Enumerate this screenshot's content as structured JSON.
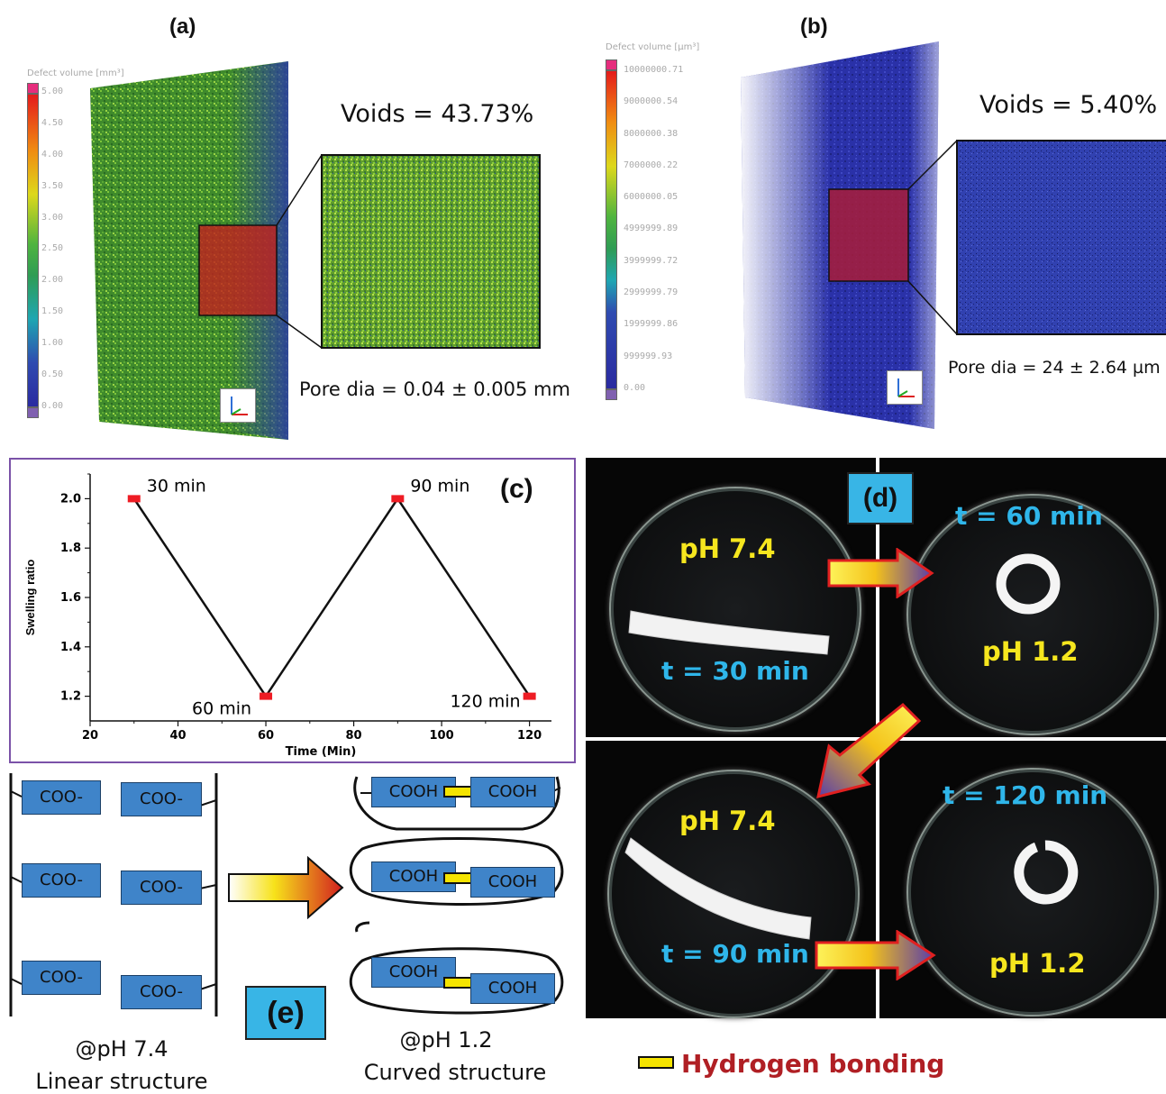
{
  "panel_a": {
    "label": "(a)",
    "colorbar_title": "Defect volume [mm³]",
    "colorbar_ticks": [
      "5.00",
      "4.50",
      "4.00",
      "3.50",
      "3.00",
      "2.50",
      "2.00",
      "1.50",
      "1.00",
      "0.50",
      "0.00"
    ],
    "voids": "Voids = 43.73%",
    "pore": "Pore dia = 0.04 ± 0.005 mm",
    "axes_icon": "xyz-axes-icon"
  },
  "panel_b": {
    "label": "(b)",
    "colorbar_title": "Defect volume [µm³]",
    "colorbar_ticks": [
      "10000000.71",
      "9000000.54",
      "8000000.38",
      "7000000.22",
      "6000000.05",
      "4999999.89",
      "3999999.72",
      "2999999.79",
      "1999999.86",
      "999999.93",
      "0.00"
    ],
    "voids": "Voids = 5.40%",
    "pore": "Pore dia = 24 ± 2.64 µm",
    "axes_icon": "xyz-axes-icon"
  },
  "panel_c": {
    "label": "(c)",
    "x_ticks": [
      "20",
      "40",
      "60",
      "80",
      "100",
      "120"
    ],
    "y_ticks": [
      "1.2",
      "1.4",
      "1.6",
      "1.8",
      "2.0"
    ],
    "point_labels": [
      "30 min",
      "60 min",
      "90 min",
      "120 min"
    ]
  },
  "chart_data": {
    "type": "line",
    "x": [
      30,
      60,
      90,
      120
    ],
    "values": [
      2.0,
      1.2,
      2.0,
      1.2
    ],
    "xlabel": "Time (Min)",
    "ylabel": "Swelling ratio",
    "xlim": [
      20,
      125
    ],
    "ylim": [
      1.1,
      2.1
    ],
    "colors": {
      "line": "#111111",
      "marker": "#ee1c24"
    }
  },
  "panel_d": {
    "label": "(d)",
    "q1": {
      "ph": "pH  7.4",
      "t": "t = 30 min"
    },
    "q2": {
      "ph": "pH  1.2",
      "t": "t = 60 min"
    },
    "q3": {
      "ph": "pH  7.4",
      "t": "t = 90 min"
    },
    "q4": {
      "ph": "pH  1.2",
      "t": "t = 120 min"
    }
  },
  "panel_e": {
    "label": "(e)",
    "left_groups": [
      "COO-",
      "COO-",
      "COO-",
      "COO-",
      "COO-",
      "COO-"
    ],
    "right_groups": [
      "COOH",
      "COOH",
      "COOH",
      "COOH",
      "COOH",
      "COOH"
    ],
    "left_caption_1": "@pH  7.4",
    "left_caption_2": "Linear structure",
    "right_caption_1": "@pH  1.2",
    "right_caption_2": "Curved structure"
  },
  "legend": {
    "label": "Hydrogen bonding",
    "color": "#f5e400",
    "text_color": "#b01f24"
  }
}
